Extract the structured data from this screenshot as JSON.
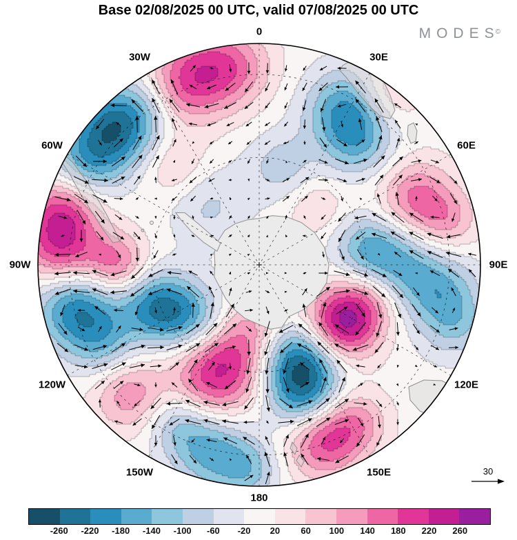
{
  "logo": {
    "text": "MODES",
    "mark": "©"
  },
  "chart_data": {
    "type": "heatmap",
    "projection": "south_polar_stereographic",
    "title": "Base 02/08/2025 00 UTC, valid 07/08/2025 00 UTC",
    "longitude_labels": [
      {
        "label": "0",
        "lon": 0
      },
      {
        "label": "30E",
        "lon": 30
      },
      {
        "label": "60E",
        "lon": 60
      },
      {
        "label": "90E",
        "lon": 90
      },
      {
        "label": "120E",
        "lon": 120
      },
      {
        "label": "150E",
        "lon": 150
      },
      {
        "label": "180",
        "lon": 180
      },
      {
        "label": "150W",
        "lon": -150
      },
      {
        "label": "120W",
        "lon": -120
      },
      {
        "label": "90W",
        "lon": -90
      },
      {
        "label": "60W",
        "lon": -60
      },
      {
        "label": "30W",
        "lon": -30
      }
    ],
    "graticule": {
      "meridian_step_deg": 30,
      "latitude_circle_fractions": [
        0.485,
        0.86
      ]
    },
    "colorbar": {
      "levels": [
        -260,
        -220,
        -180,
        -140,
        -100,
        -60,
        -20,
        20,
        60,
        100,
        140,
        180,
        220,
        260
      ],
      "colors": [
        "#155068",
        "#1f7396",
        "#2a8ebd",
        "#59abd0",
        "#8ec6de",
        "#bfd0e5",
        "#e1e4ef",
        "#f9f5f5",
        "#fae3e7",
        "#f8c4d2",
        "#f59bbb",
        "#ef66a4",
        "#e13597",
        "#c31e92",
        "#9a1f9e"
      ]
    },
    "reference_vector": 30,
    "anomaly_centers_format": [
      "lon_deg_east",
      "radius_fraction",
      "amplitude",
      "sigma_fraction_of_R"
    ],
    "anomaly_centers": [
      [
        -16,
        0.91,
        150,
        0.14
      ],
      [
        -26,
        0.87,
        100,
        0.12
      ],
      [
        -6,
        0.9,
        90,
        0.12
      ],
      [
        -80,
        0.92,
        165,
        0.13
      ],
      [
        -72,
        0.92,
        100,
        0.11
      ],
      [
        -89,
        0.89,
        100,
        0.11
      ],
      [
        -161,
        0.45,
        195,
        0.145
      ],
      [
        -157,
        0.6,
        85,
        0.12
      ],
      [
        -173,
        0.27,
        65,
        0.11
      ],
      [
        125,
        0.46,
        275,
        0.115
      ],
      [
        106,
        0.53,
        100,
        0.1
      ],
      [
        67,
        0.77,
        150,
        0.12
      ],
      [
        77,
        0.876,
        90,
        0.1
      ],
      [
        160,
        0.843,
        190,
        0.12
      ],
      [
        148,
        0.837,
        100,
        0.1
      ],
      [
        -135,
        0.826,
        130,
        0.12
      ],
      [
        -90,
        0.65,
        160,
        0.1
      ],
      [
        45,
        0.368,
        60,
        0.1
      ],
      [
        -41,
        0.585,
        70,
        0.11
      ],
      [
        37,
        0.962,
        90,
        0.1
      ],
      [
        30,
        0.8,
        -190,
        0.13
      ],
      [
        40,
        0.7,
        -90,
        0.11
      ],
      [
        -47,
        0.9,
        -230,
        0.13
      ],
      [
        -61,
        0.91,
        -130,
        0.12
      ],
      [
        -35,
        0.88,
        -80,
        0.11
      ],
      [
        -103,
        0.85,
        -210,
        0.13
      ],
      [
        -117,
        0.79,
        -110,
        0.11
      ],
      [
        -119,
        0.44,
        -150,
        0.115
      ],
      [
        -110,
        0.53,
        -120,
        0.11
      ],
      [
        -138,
        0.355,
        -100,
        0.11
      ],
      [
        -41,
        0.36,
        -70,
        0.13
      ],
      [
        158,
        0.48,
        -255,
        0.125
      ],
      [
        162,
        0.65,
        -135,
        0.11
      ],
      [
        91,
        0.62,
        -140,
        0.13
      ],
      [
        98,
        0.83,
        -120,
        0.12
      ],
      [
        80,
        0.49,
        -110,
        0.11
      ],
      [
        107,
        0.925,
        -90,
        0.11
      ],
      [
        -165,
        0.868,
        -150,
        0.12
      ],
      [
        -177,
        0.926,
        -110,
        0.1
      ],
      [
        -152,
        0.8,
        -90,
        0.1
      ],
      [
        13,
        0.456,
        -80,
        0.11
      ]
    ]
  }
}
